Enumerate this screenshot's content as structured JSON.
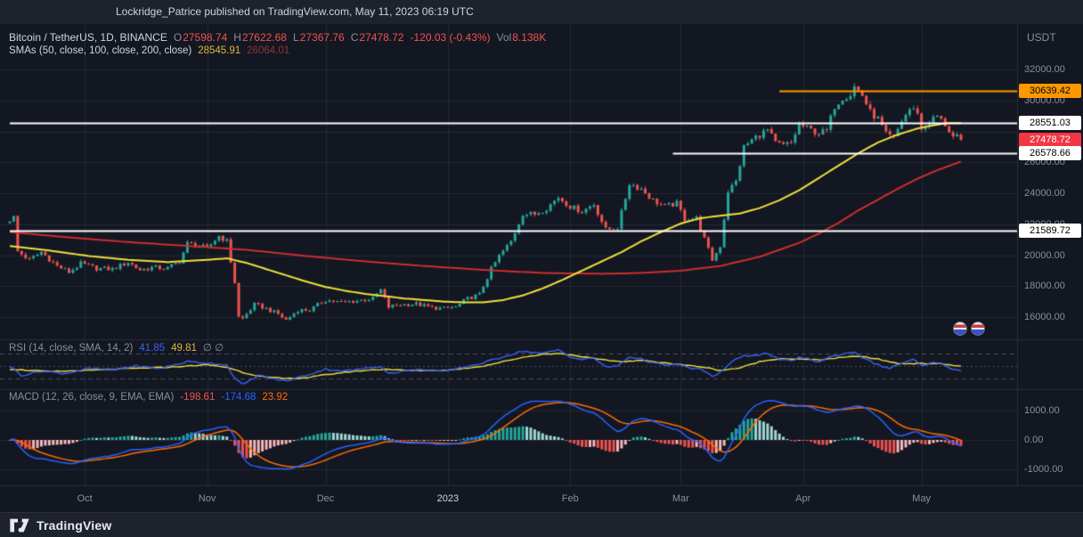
{
  "publish_bar": {
    "text": "Lockridge_Patrice published on TradingView.com, May 11, 2023 06:19 UTC"
  },
  "header": {
    "symbol": "Bitcoin / TetherUS, 1D, BINANCE",
    "ohlc": [
      {
        "label": "O",
        "value": "27598.74"
      },
      {
        "label": "H",
        "value": "27622.68"
      },
      {
        "label": "L",
        "value": "27367.76"
      },
      {
        "label": "C",
        "value": "27478.72"
      }
    ],
    "change": "-120.03 (-0.43%)",
    "vol_label": "Vol",
    "vol_value": "8.138K",
    "currency": "USDT",
    "sma_label": "SMAs (50, close, 100, close, 200, close)",
    "sma_fast_value": "28545.91",
    "sma_slow_value": "26064.01"
  },
  "rsi_legend": {
    "title": "RSI (14, close, SMA, 14, 2)",
    "value1": "41.85",
    "value2": "49.81",
    "icons": "∅ ∅"
  },
  "macd_legend": {
    "title": "MACD (12, 26, close, 9, EMA, EMA)",
    "hist_value": "-198.61",
    "macd_value": "-174.68",
    "signal_value": "23.92"
  },
  "footer": {
    "brand": "TradingView"
  },
  "colors": {
    "up": "#26a69a",
    "down": "#ef5350",
    "sma_fast": "#f0e13b",
    "sma_slow": "#cc2f2f",
    "sma_fast_legend": "#d9b83a",
    "sma_slow_legend": "#8f3535",
    "rsi_line": "#3b62f5",
    "rsi_sma": "#f0e13b",
    "macd_line": "#2962ff",
    "signal_line": "#ff6d00",
    "hist_pos": "#26a69a",
    "hist_pos_weak": "#9fd8d2",
    "hist_neg": "#ef5350",
    "hist_neg_weak": "#f8b7b9",
    "neg_text": "#ef5350",
    "gray_text": "#8a8e99",
    "white_text": "#d1d4dc"
  },
  "chart_data": {
    "type": "candlestick",
    "symbol": "Bitcoin / TetherUS",
    "exchange": "BINANCE",
    "interval": "1D",
    "bars": 242,
    "y_axis": {
      "ticks": [
        {
          "v": 32000,
          "label": "32000.00"
        },
        {
          "v": 30000,
          "label": "30000.00"
        },
        {
          "v": 26000,
          "label": "26000.00"
        },
        {
          "v": 24000,
          "label": "24000.00"
        },
        {
          "v": 22000,
          "label": "22000.00"
        },
        {
          "v": 20000,
          "label": "20000.00"
        },
        {
          "v": 18000,
          "label": "18000.00"
        },
        {
          "v": 16000,
          "label": "16000.00"
        }
      ],
      "range": [
        15400,
        32600
      ]
    },
    "macd_axis": {
      "ticks": [
        {
          "v": 1000,
          "label": "1000.00"
        },
        {
          "v": 0,
          "label": "0.00"
        },
        {
          "v": -1000,
          "label": "-1000.00"
        }
      ]
    },
    "x_labels": [
      {
        "bar": 19,
        "label": "Oct"
      },
      {
        "bar": 50,
        "label": "Nov"
      },
      {
        "bar": 80,
        "label": "Dec"
      },
      {
        "bar": 111,
        "label": "2023",
        "strong": true
      },
      {
        "bar": 142,
        "label": "Feb"
      },
      {
        "bar": 170,
        "label": "Mar"
      },
      {
        "bar": 201,
        "label": "Apr"
      },
      {
        "bar": 231,
        "label": "May"
      }
    ],
    "levels": [
      {
        "price": 30639.42,
        "label": "30639.42",
        "line_color": "#ff9800",
        "label_bg": "#ff9800",
        "label_fg": "#000000",
        "from_bar": 195,
        "width": 2
      },
      {
        "price": 28551.03,
        "label": "28551.03",
        "line_color": "#ffffff",
        "label_bg": "#ffffff",
        "label_fg": "#000000",
        "from_bar": 0,
        "width": 2
      },
      {
        "price": 27478.72,
        "label": "27478.72",
        "line_color": null,
        "label_bg": "#f23645",
        "label_fg": "#ffffff",
        "from_bar": null,
        "width": 0
      },
      {
        "price": 26578.66,
        "label": "26578.66",
        "line_color": "#ffffff",
        "label_bg": "#ffffff",
        "label_fg": "#000000",
        "from_bar": 168,
        "width": 2
      },
      {
        "price": 21589.72,
        "label": "21589.72",
        "line_color": "#ffffff",
        "label_bg": "#ffffff",
        "label_fg": "#000000",
        "from_bar": 0,
        "width": 2
      }
    ],
    "close_anchors": [
      [
        0,
        22300
      ],
      [
        1,
        22450
      ],
      [
        2,
        20250
      ],
      [
        5,
        19700
      ],
      [
        8,
        20200
      ],
      [
        12,
        19300
      ],
      [
        15,
        18900
      ],
      [
        18,
        19450
      ],
      [
        22,
        19150
      ],
      [
        26,
        19100
      ],
      [
        30,
        19550
      ],
      [
        33,
        19050
      ],
      [
        36,
        19200
      ],
      [
        40,
        19150
      ],
      [
        43,
        19600
      ],
      [
        45,
        20750
      ],
      [
        48,
        20600
      ],
      [
        50,
        20450
      ],
      [
        53,
        21250
      ],
      [
        55,
        20900
      ],
      [
        57,
        18250
      ],
      [
        58,
        16000
      ],
      [
        59,
        15900
      ],
      [
        62,
        16800
      ],
      [
        64,
        16650
      ],
      [
        68,
        16200
      ],
      [
        70,
        15800
      ],
      [
        73,
        16450
      ],
      [
        76,
        16450
      ],
      [
        80,
        17100
      ],
      [
        84,
        16950
      ],
      [
        88,
        17050
      ],
      [
        92,
        17200
      ],
      [
        94,
        17750
      ],
      [
        96,
        16650
      ],
      [
        99,
        16800
      ],
      [
        103,
        16850
      ],
      [
        107,
        16600
      ],
      [
        110,
        16550
      ],
      [
        113,
        16650
      ],
      [
        116,
        17200
      ],
      [
        119,
        17450
      ],
      [
        122,
        19100
      ],
      [
        124,
        19950
      ],
      [
        127,
        20900
      ],
      [
        130,
        22700
      ],
      [
        133,
        22650
      ],
      [
        136,
        23050
      ],
      [
        139,
        23750
      ],
      [
        142,
        23150
      ],
      [
        145,
        22850
      ],
      [
        148,
        23300
      ],
      [
        151,
        21650
      ],
      [
        154,
        21800
      ],
      [
        157,
        24650
      ],
      [
        160,
        24300
      ],
      [
        163,
        23550
      ],
      [
        166,
        23150
      ],
      [
        169,
        23350
      ],
      [
        171,
        22350
      ],
      [
        174,
        22400
      ],
      [
        177,
        20350
      ],
      [
        178,
        19700
      ],
      [
        180,
        20600
      ],
      [
        182,
        24150
      ],
      [
        184,
        24750
      ],
      [
        186,
        27000
      ],
      [
        188,
        27450
      ],
      [
        190,
        27800
      ],
      [
        192,
        28100
      ],
      [
        194,
        27250
      ],
      [
        196,
        27100
      ],
      [
        198,
        27250
      ],
      [
        200,
        28450
      ],
      [
        202,
        28200
      ],
      [
        205,
        27900
      ],
      [
        207,
        28050
      ],
      [
        209,
        29650
      ],
      [
        211,
        30200
      ],
      [
        213,
        30400
      ],
      [
        214,
        30900
      ],
      [
        216,
        30350
      ],
      [
        218,
        29250
      ],
      [
        220,
        28800
      ],
      [
        222,
        27800
      ],
      [
        224,
        27550
      ],
      [
        226,
        28700
      ],
      [
        228,
        29450
      ],
      [
        230,
        29300
      ],
      [
        231,
        28100
      ],
      [
        233,
        28650
      ],
      [
        235,
        29000
      ],
      [
        237,
        28450
      ],
      [
        239,
        27650
      ],
      [
        240,
        27600
      ],
      [
        241,
        27478.72
      ]
    ],
    "sma_fast_anchors": [
      [
        0,
        20600
      ],
      [
        10,
        20300
      ],
      [
        20,
        19950
      ],
      [
        30,
        19700
      ],
      [
        40,
        19550
      ],
      [
        50,
        19700
      ],
      [
        55,
        19800
      ],
      [
        60,
        19500
      ],
      [
        65,
        19100
      ],
      [
        70,
        18700
      ],
      [
        75,
        18300
      ],
      [
        80,
        17950
      ],
      [
        85,
        17700
      ],
      [
        90,
        17500
      ],
      [
        95,
        17350
      ],
      [
        100,
        17200
      ],
      [
        105,
        17100
      ],
      [
        110,
        17000
      ],
      [
        115,
        16950
      ],
      [
        120,
        16950
      ],
      [
        125,
        17100
      ],
      [
        130,
        17400
      ],
      [
        135,
        17850
      ],
      [
        140,
        18400
      ],
      [
        145,
        19000
      ],
      [
        150,
        19600
      ],
      [
        155,
        20200
      ],
      [
        160,
        20900
      ],
      [
        165,
        21500
      ],
      [
        170,
        22050
      ],
      [
        175,
        22400
      ],
      [
        180,
        22550
      ],
      [
        185,
        22700
      ],
      [
        190,
        23050
      ],
      [
        195,
        23550
      ],
      [
        200,
        24200
      ],
      [
        205,
        25000
      ],
      [
        210,
        25800
      ],
      [
        215,
        26600
      ],
      [
        220,
        27300
      ],
      [
        225,
        27800
      ],
      [
        230,
        28200
      ],
      [
        235,
        28450
      ],
      [
        238,
        28550
      ],
      [
        241,
        28545.91
      ]
    ],
    "sma_slow_anchors": [
      [
        0,
        21500
      ],
      [
        15,
        21150
      ],
      [
        30,
        20850
      ],
      [
        45,
        20600
      ],
      [
        60,
        20350
      ],
      [
        75,
        19950
      ],
      [
        90,
        19600
      ],
      [
        105,
        19300
      ],
      [
        120,
        19050
      ],
      [
        135,
        18850
      ],
      [
        150,
        18800
      ],
      [
        160,
        18850
      ],
      [
        170,
        19000
      ],
      [
        180,
        19300
      ],
      [
        190,
        19900
      ],
      [
        200,
        20800
      ],
      [
        205,
        21400
      ],
      [
        210,
        22100
      ],
      [
        215,
        22900
      ],
      [
        220,
        23600
      ],
      [
        225,
        24300
      ],
      [
        230,
        24950
      ],
      [
        235,
        25500
      ],
      [
        241,
        26064.01
      ]
    ],
    "rsi": {
      "upper": 70,
      "middle": 50,
      "lower": 30,
      "line_anchors": [
        [
          0,
          50
        ],
        [
          3,
          35
        ],
        [
          8,
          42
        ],
        [
          14,
          38
        ],
        [
          20,
          46
        ],
        [
          26,
          44
        ],
        [
          32,
          50
        ],
        [
          38,
          46
        ],
        [
          45,
          57
        ],
        [
          50,
          55
        ],
        [
          55,
          52
        ],
        [
          57,
          30
        ],
        [
          59,
          20
        ],
        [
          63,
          35
        ],
        [
          68,
          28
        ],
        [
          70,
          26
        ],
        [
          75,
          35
        ],
        [
          80,
          45
        ],
        [
          85,
          42
        ],
        [
          90,
          46
        ],
        [
          94,
          50
        ],
        [
          96,
          38
        ],
        [
          100,
          42
        ],
        [
          105,
          44
        ],
        [
          110,
          41
        ],
        [
          115,
          48
        ],
        [
          120,
          55
        ],
        [
          125,
          65
        ],
        [
          130,
          74
        ],
        [
          135,
          70
        ],
        [
          139,
          76
        ],
        [
          142,
          65
        ],
        [
          145,
          60
        ],
        [
          148,
          63
        ],
        [
          151,
          48
        ],
        [
          154,
          50
        ],
        [
          157,
          65
        ],
        [
          160,
          61
        ],
        [
          163,
          55
        ],
        [
          166,
          51
        ],
        [
          169,
          53
        ],
        [
          172,
          47
        ],
        [
          175,
          45
        ],
        [
          178,
          33
        ],
        [
          180,
          40
        ],
        [
          183,
          57
        ],
        [
          186,
          66
        ],
        [
          189,
          68
        ],
        [
          192,
          70
        ],
        [
          195,
          60
        ],
        [
          198,
          58
        ],
        [
          200,
          64
        ],
        [
          203,
          60
        ],
        [
          205,
          57
        ],
        [
          208,
          65
        ],
        [
          211,
          69
        ],
        [
          214,
          73
        ],
        [
          217,
          60
        ],
        [
          220,
          52
        ],
        [
          223,
          46
        ],
        [
          226,
          55
        ],
        [
          229,
          60
        ],
        [
          231,
          50
        ],
        [
          234,
          55
        ],
        [
          237,
          52
        ],
        [
          239,
          44
        ],
        [
          241,
          41.85
        ]
      ],
      "sma_anchors": [
        [
          0,
          45
        ],
        [
          10,
          41
        ],
        [
          20,
          43
        ],
        [
          30,
          46
        ],
        [
          40,
          48
        ],
        [
          50,
          52
        ],
        [
          55,
          48
        ],
        [
          60,
          38
        ],
        [
          65,
          32
        ],
        [
          70,
          30
        ],
        [
          75,
          31
        ],
        [
          80,
          36
        ],
        [
          85,
          40
        ],
        [
          90,
          43
        ],
        [
          95,
          45
        ],
        [
          100,
          43
        ],
        [
          105,
          43
        ],
        [
          110,
          43
        ],
        [
          115,
          46
        ],
        [
          120,
          50
        ],
        [
          125,
          57
        ],
        [
          130,
          64
        ],
        [
          135,
          69
        ],
        [
          140,
          70
        ],
        [
          145,
          65
        ],
        [
          150,
          60
        ],
        [
          155,
          57
        ],
        [
          160,
          59
        ],
        [
          165,
          56
        ],
        [
          170,
          52
        ],
        [
          175,
          49
        ],
        [
          180,
          43
        ],
        [
          185,
          47
        ],
        [
          190,
          57
        ],
        [
          195,
          62
        ],
        [
          200,
          61
        ],
        [
          205,
          60
        ],
        [
          210,
          63
        ],
        [
          215,
          66
        ],
        [
          220,
          61
        ],
        [
          225,
          54
        ],
        [
          230,
          54
        ],
        [
          235,
          54
        ],
        [
          239,
          51
        ],
        [
          241,
          49.81
        ]
      ]
    },
    "macd": {
      "fast": 12,
      "slow": 26,
      "signal": 9
    }
  }
}
